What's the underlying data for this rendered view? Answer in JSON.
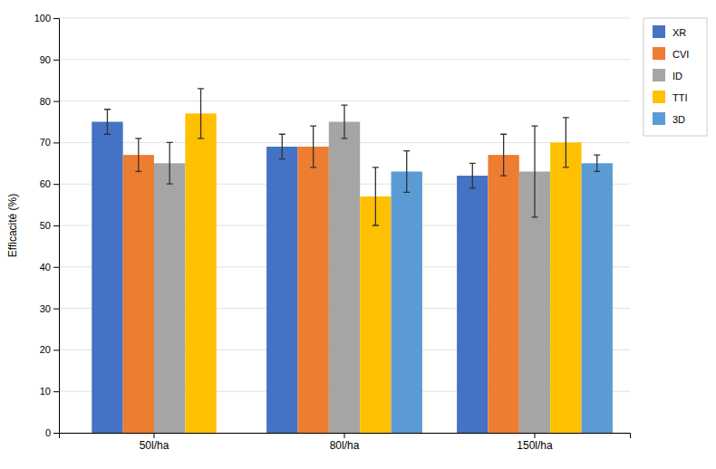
{
  "chart_data": {
    "type": "bar",
    "categories": [
      "50l/ha",
      "80l/ha",
      "150l/ha"
    ],
    "series": [
      {
        "name": "XR",
        "color": "#4472C4",
        "values": [
          75,
          69,
          62
        ],
        "errors": [
          3,
          3,
          3
        ]
      },
      {
        "name": "CVI",
        "color": "#ED7D31",
        "values": [
          67,
          69,
          67
        ],
        "errors": [
          4,
          5,
          5
        ]
      },
      {
        "name": "ID",
        "color": "#A5A5A5",
        "values": [
          65,
          75,
          63
        ],
        "errors": [
          5,
          4,
          11
        ]
      },
      {
        "name": "TTI",
        "color": "#FFC000",
        "values": [
          77,
          57,
          70
        ],
        "errors": [
          6,
          7,
          6
        ]
      },
      {
        "name": "3D",
        "color": "#5B9BD5",
        "values": [
          null,
          63,
          65
        ],
        "errors": [
          null,
          5,
          2
        ]
      }
    ],
    "ylabel": "Efficacité (%)",
    "ylim": [
      0,
      100
    ],
    "yticks": [
      0,
      10,
      20,
      30,
      40,
      50,
      60,
      70,
      80,
      90,
      100
    ],
    "grid": true,
    "legend": "right"
  }
}
